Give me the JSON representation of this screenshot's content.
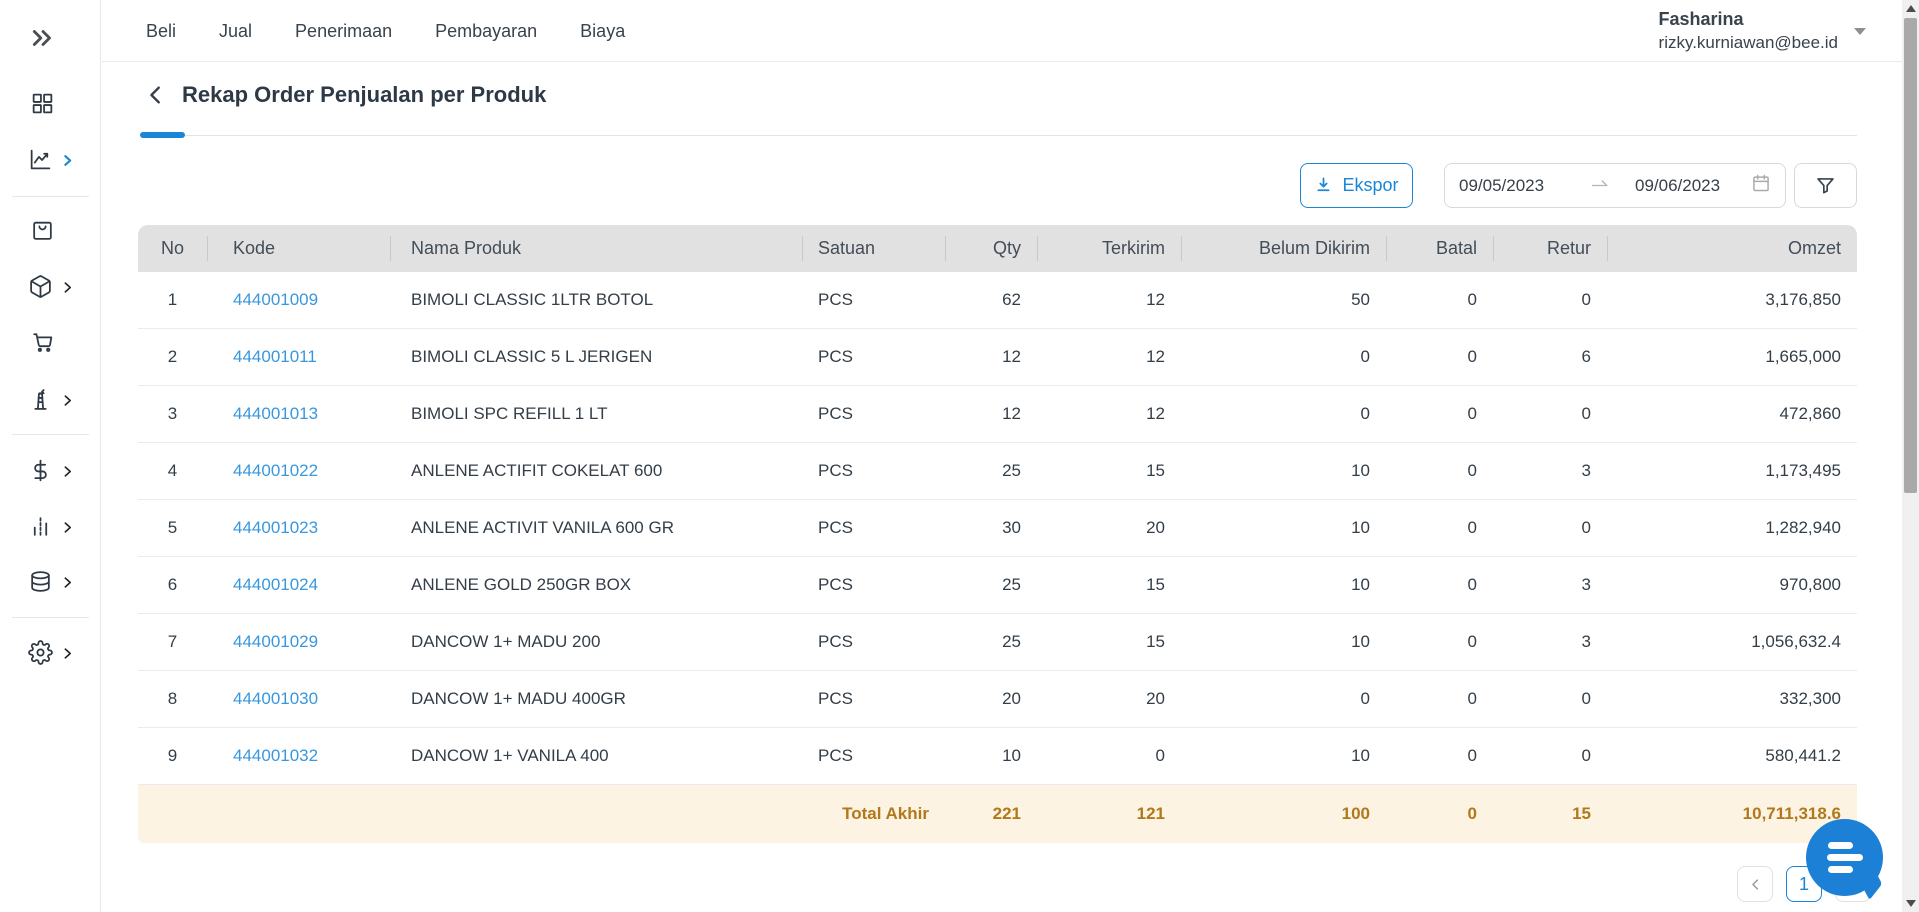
{
  "topnav": {
    "items": [
      {
        "label": "Beli"
      },
      {
        "label": "Jual"
      },
      {
        "label": "Penerimaan"
      },
      {
        "label": "Pembayaran"
      },
      {
        "label": "Biaya"
      }
    ]
  },
  "user": {
    "name": "Fasharina",
    "email": "rizky.kurniawan@bee.id",
    "caret_icon": "chevron-down-icon"
  },
  "sidebar": {
    "items": [
      {
        "name": "collapse",
        "icon": "double-chevron-right-icon",
        "has_submenu": false,
        "active": false
      },
      {
        "name": "dashboard",
        "icon": "grid-icon",
        "has_submenu": false,
        "active": false
      },
      {
        "name": "reports",
        "icon": "line-chart-icon",
        "has_submenu": true,
        "active": true
      },
      {
        "name": "shop",
        "icon": "shopping-bag-icon",
        "has_submenu": false,
        "active": false
      },
      {
        "name": "products",
        "icon": "package-icon",
        "has_submenu": true,
        "active": false
      },
      {
        "name": "purchases",
        "icon": "shopping-cart-icon",
        "has_submenu": false,
        "active": false
      },
      {
        "name": "manufacturing",
        "icon": "tower-icon",
        "has_submenu": true,
        "active": false
      },
      {
        "name": "finance",
        "icon": "dollar-icon",
        "has_submenu": true,
        "active": false
      },
      {
        "name": "statistics",
        "icon": "bar-chart-icon",
        "has_submenu": true,
        "active": false
      },
      {
        "name": "master-data",
        "icon": "database-icon",
        "has_submenu": true,
        "active": false
      },
      {
        "name": "settings",
        "icon": "gear-icon",
        "has_submenu": true,
        "active": false
      }
    ]
  },
  "page": {
    "title": "Rekap Order Penjualan per Produk",
    "back_icon": "chevron-left-icon"
  },
  "toolbar": {
    "export_label": "Ekspor",
    "export_icon": "download-icon",
    "date_start": "09/05/2023",
    "date_end": "09/06/2023",
    "range_arrow_icon": "arrow-right-icon",
    "calendar_icon": "calendar-icon",
    "filter_icon": "funnel-icon"
  },
  "table": {
    "columns": [
      {
        "label": "No",
        "align": "center"
      },
      {
        "label": "Kode",
        "align": "left"
      },
      {
        "label": "Nama Produk",
        "align": "left"
      },
      {
        "label": "Satuan",
        "align": "left"
      },
      {
        "label": "Qty",
        "align": "right"
      },
      {
        "label": "Terkirim",
        "align": "right"
      },
      {
        "label": "Belum Dikirim",
        "align": "right"
      },
      {
        "label": "Batal",
        "align": "right"
      },
      {
        "label": "Retur",
        "align": "right"
      },
      {
        "label": "Omzet",
        "align": "right"
      }
    ],
    "rows": [
      [
        "1",
        "444001009",
        "BIMOLI CLASSIC 1LTR BOTOL",
        "PCS",
        "62",
        "12",
        "50",
        "0",
        "0",
        "3,176,850"
      ],
      [
        "2",
        "444001011",
        "BIMOLI CLASSIC 5 L JERIGEN",
        "PCS",
        "12",
        "12",
        "0",
        "0",
        "6",
        "1,665,000"
      ],
      [
        "3",
        "444001013",
        "BIMOLI SPC REFILL 1 LT",
        "PCS",
        "12",
        "12",
        "0",
        "0",
        "0",
        "472,860"
      ],
      [
        "4",
        "444001022",
        "ANLENE ACTIFIT COKELAT 600",
        "PCS",
        "25",
        "15",
        "10",
        "0",
        "3",
        "1,173,495"
      ],
      [
        "5",
        "444001023",
        "ANLENE ACTIVIT VANILA 600 GR",
        "PCS",
        "30",
        "20",
        "10",
        "0",
        "0",
        "1,282,940"
      ],
      [
        "6",
        "444001024",
        "ANLENE GOLD 250GR BOX",
        "PCS",
        "25",
        "15",
        "10",
        "0",
        "3",
        "970,800"
      ],
      [
        "7",
        "444001029",
        "DANCOW 1+ MADU 200",
        "PCS",
        "25",
        "15",
        "10",
        "0",
        "3",
        "1,056,632.4"
      ],
      [
        "8",
        "444001030",
        "DANCOW 1+ MADU 400GR",
        "PCS",
        "20",
        "20",
        "0",
        "0",
        "0",
        "332,300"
      ],
      [
        "9",
        "444001032",
        "DANCOW 1+ VANILA 400",
        "PCS",
        "10",
        "0",
        "10",
        "0",
        "0",
        "580,441.2"
      ]
    ],
    "total": {
      "label": "Total Akhir",
      "values": [
        "221",
        "121",
        "100",
        "0",
        "15",
        "10,711,318.6"
      ]
    }
  },
  "pagination": {
    "current": "1",
    "prev_icon": "chevron-left-icon",
    "next_icon": "chevron-right-icon"
  },
  "chat": {
    "icon": "chat-bubble-icon"
  },
  "colors": {
    "primary_blue": "#1a87d6",
    "code_link_blue": "#3897de",
    "header_row_bg": "#e1e1e1",
    "total_row_bg": "#fdf3e2",
    "total_row_text": "#b0791b",
    "body_text": "#333e48"
  }
}
